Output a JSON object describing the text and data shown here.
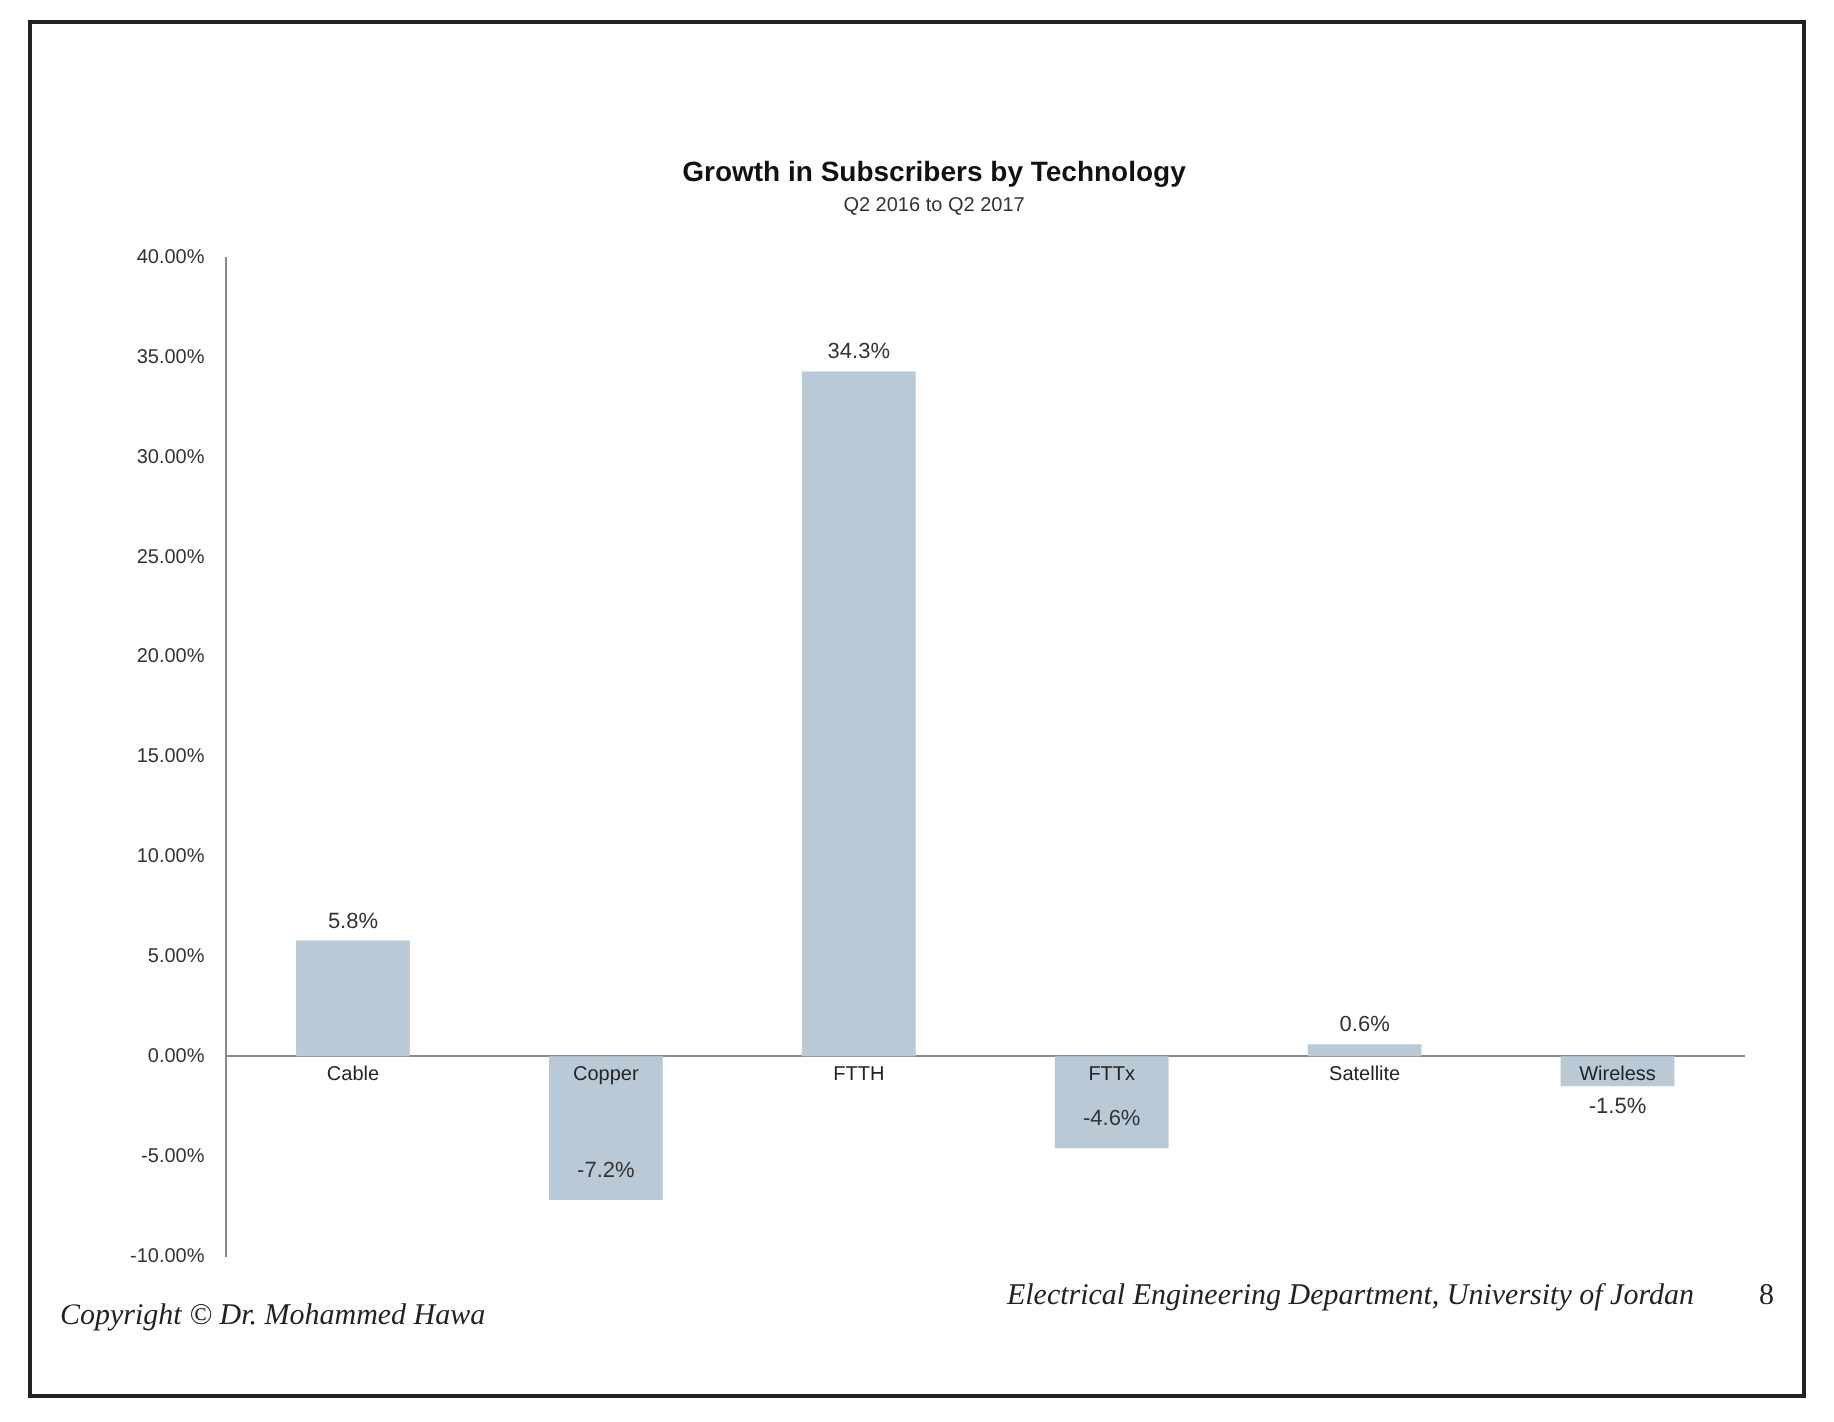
{
  "chart_data": {
    "type": "bar",
    "title": "Growth in Subscribers by Technology",
    "subtitle": "Q2 2016 to Q2 2017",
    "categories": [
      "Cable",
      "Copper",
      "FTTH",
      "FTTx",
      "Satellite",
      "Wireless"
    ],
    "values": [
      5.8,
      -7.2,
      34.3,
      -4.6,
      0.6,
      -1.5
    ],
    "value_labels": [
      "5.8%",
      "-7.2%",
      "34.3%",
      "-4.6%",
      "0.6%",
      "-1.5%"
    ],
    "color": "#b9cad6",
    "ylim": [
      -10,
      40
    ],
    "yticks": [
      {
        "value": -10,
        "label": "-10.00%"
      },
      {
        "value": -5,
        "label": "-5.00%"
      },
      {
        "value": 0,
        "label": "0.00%"
      },
      {
        "value": 5,
        "label": "5.00%"
      },
      {
        "value": 10,
        "label": "10.00%"
      },
      {
        "value": 15,
        "label": "15.00%"
      },
      {
        "value": 20,
        "label": "20.00%"
      },
      {
        "value": 25,
        "label": "25.00%"
      },
      {
        "value": 30,
        "label": "30.00%"
      },
      {
        "value": 35,
        "label": "35.00%"
      },
      {
        "value": 40,
        "label": "40.00%"
      }
    ],
    "grid": false,
    "legend": false,
    "annotations": [
      "Copyright © Dr. Mohammed Hawa",
      "Electrical Engineering Department, University of Jordan",
      "8"
    ]
  }
}
